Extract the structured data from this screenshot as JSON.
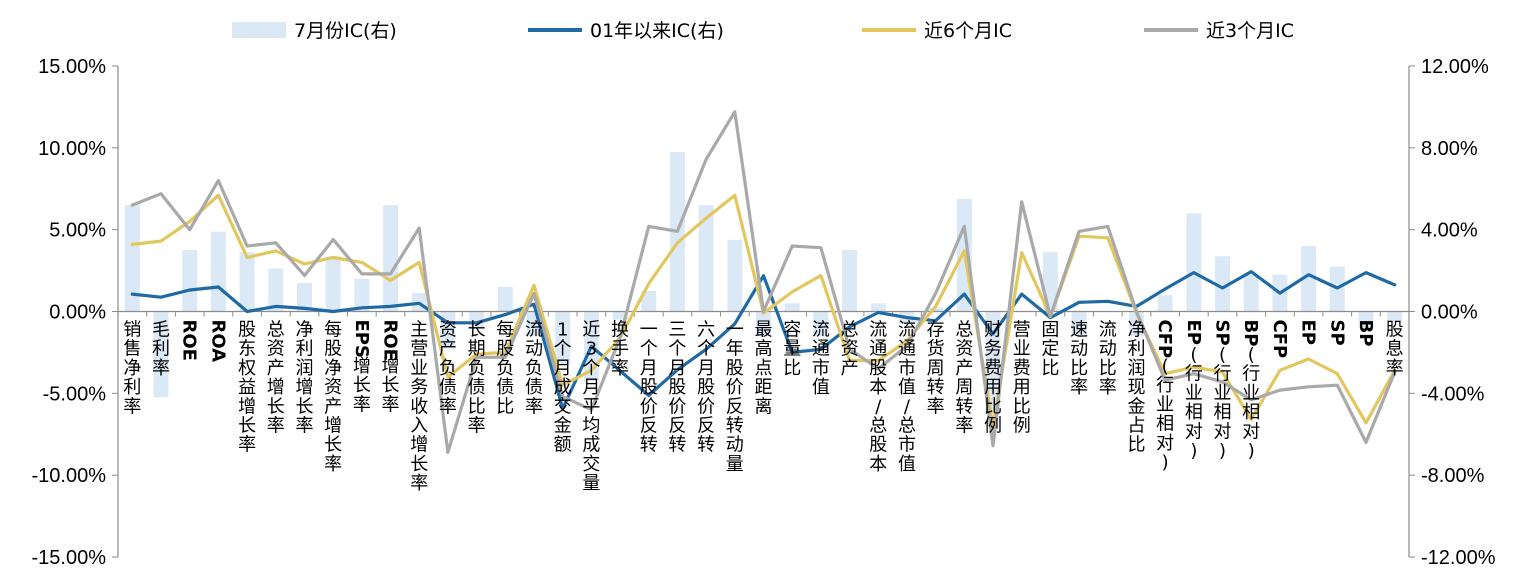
{
  "chart_data": {
    "type": "bar",
    "title": "",
    "xlabel": "",
    "ylabel": "",
    "categories": [
      "销售净利率",
      "毛利率",
      "ROE",
      "ROA",
      "股东权益增长率",
      "总资产增长率",
      "净利润增长率",
      "每股净资产增长率",
      "EPS增长率",
      "ROE增长率",
      "主营业务收入增长率",
      "资产负债率",
      "长期负债比率",
      "每股负债比",
      "流动负债率",
      "1个月成交金额",
      "近3个月平均成交量",
      "换手率",
      "一个月股价反转",
      "三个月股价反转",
      "六个月股价反转",
      "一年股价反转动量",
      "最高点距离",
      "容量比",
      "流通市值",
      "总资产",
      "流通股本/总股本",
      "流通市值/总市值",
      "存货周转率",
      "总资产周转率",
      "财务费用比例",
      "营业费用比例",
      "固定比",
      "速动比率",
      "流动比率",
      "净利润现金占比",
      "CFP(行业相对)",
      "EP(行业相对)",
      "SP(行业相对)",
      "BP(行业相对)",
      "CFP",
      "EP",
      "SP",
      "BP",
      "股息率"
    ],
    "left_axis": {
      "ylim": [
        -0.15,
        0.15
      ],
      "ticks": [
        0.15,
        0.1,
        0.05,
        0.0,
        -0.05,
        -0.1,
        -0.15
      ],
      "tick_labels": [
        "15.00%",
        "10.00%",
        "5.00%",
        "0.00%",
        "-5.00%",
        "-10.00%",
        "-15.00%"
      ]
    },
    "right_axis": {
      "ylim": [
        -0.12,
        0.12
      ],
      "ticks": [
        0.12,
        0.08,
        0.04,
        0.0,
        -0.04,
        -0.08,
        -0.12
      ],
      "tick_labels": [
        "12.00%",
        "8.00%",
        "4.00%",
        "0.00%",
        "-4.00%",
        "-8.00%",
        "-12.00%"
      ]
    },
    "grid": false,
    "legend_position": "top",
    "series": [
      {
        "name": "7月份IC(右)",
        "type": "bar",
        "axis": "right",
        "color": "#dbe8f6",
        "values": [
          0.052,
          -0.042,
          0.03,
          0.039,
          0.029,
          0.021,
          0.014,
          0.027,
          0.016,
          0.052,
          0.009,
          -0.018,
          -0.008,
          0.012,
          -0.012,
          -0.026,
          -0.034,
          -0.004,
          0.01,
          0.078,
          0.052,
          0.035,
          -0.012,
          0.004,
          -0.012,
          0.03,
          0.004,
          -0.006,
          0.002,
          0.055,
          -0.05,
          0.0,
          0.029,
          -0.012,
          0.0,
          -0.012,
          0.008,
          0.048,
          0.027,
          0.018,
          0.018,
          0.032,
          0.022,
          -0.008,
          -0.005
        ]
      },
      {
        "name": "01年以来IC(右)",
        "type": "line",
        "axis": "right",
        "color": "#1f6aa5",
        "values": [
          0.0085,
          0.007,
          0.0105,
          0.012,
          0.0,
          0.0025,
          0.0015,
          0.0,
          0.0018,
          0.0025,
          0.004,
          -0.0055,
          -0.0055,
          -0.0015,
          0.0035,
          -0.0475,
          -0.017,
          -0.029,
          -0.041,
          -0.0285,
          -0.0185,
          -0.006,
          0.0175,
          -0.02,
          -0.0185,
          -0.0075,
          -0.0005,
          -0.003,
          -0.0045,
          0.0085,
          -0.011,
          0.0085,
          -0.003,
          0.0045,
          0.005,
          0.0025,
          0.011,
          0.019,
          0.0115,
          0.0195,
          0.009,
          0.018,
          0.0115,
          0.019,
          0.013
        ]
      },
      {
        "name": "近6个月IC",
        "type": "line",
        "axis": "left",
        "color": "#e2c75e",
        "values": [
          0.041,
          0.043,
          0.055,
          0.071,
          0.033,
          0.037,
          0.029,
          0.033,
          0.03,
          0.019,
          0.03,
          -0.04,
          -0.026,
          -0.025,
          0.016,
          -0.045,
          -0.036,
          -0.016,
          0.017,
          0.042,
          0.057,
          0.071,
          -0.001,
          0.012,
          0.022,
          -0.03,
          -0.03,
          -0.018,
          0.003,
          0.037,
          -0.07,
          0.036,
          -0.003,
          0.046,
          0.045,
          -0.001,
          -0.038,
          -0.034,
          -0.037,
          -0.066,
          -0.036,
          -0.029,
          -0.038,
          -0.068,
          -0.036
        ]
      },
      {
        "name": "近3个月IC",
        "type": "line",
        "axis": "left",
        "color": "#a9a9a9",
        "values": [
          0.065,
          0.072,
          0.05,
          0.08,
          0.04,
          0.042,
          0.022,
          0.044,
          0.023,
          0.023,
          0.051,
          -0.086,
          -0.028,
          -0.028,
          0.011,
          -0.052,
          -0.06,
          -0.016,
          0.052,
          0.049,
          0.093,
          0.122,
          0.0,
          0.04,
          0.039,
          -0.023,
          -0.035,
          -0.021,
          0.011,
          0.052,
          -0.082,
          0.067,
          -0.003,
          0.049,
          0.052,
          0.0,
          -0.042,
          -0.038,
          -0.043,
          -0.054,
          -0.048,
          -0.046,
          -0.045,
          -0.08,
          -0.037
        ]
      }
    ]
  }
}
